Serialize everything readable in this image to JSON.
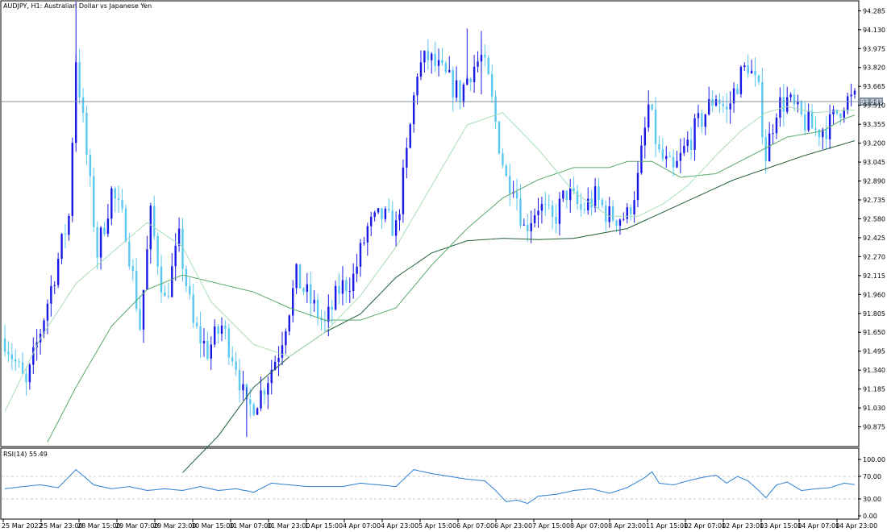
{
  "header": {
    "title": "AUDJPY, H1:  Australian Dollar vs Japanese Yen",
    "current_price": "93.541",
    "current_price_value": 93.541
  },
  "colors": {
    "bull": "#1a1ae6",
    "bear": "#5ac8f0",
    "ma_fast": "#a8ddb5",
    "ma_mid": "#5aa86a",
    "ma_slow": "#1f5e32",
    "rsi_line": "#2a7fd4",
    "grid": "#cccccc",
    "price_line": "#8090a0"
  },
  "chart_data": [
    {
      "type": "candlestick",
      "title": "AUDJPY, H1:  Australian Dollar vs Japanese Yen",
      "timeframe": "H1",
      "ylim": [
        90.72,
        94.36
      ],
      "y_ticks": [
        "94.285",
        "94.130",
        "93.975",
        "93.820",
        "93.665",
        "93.510",
        "93.355",
        "93.200",
        "93.045",
        "92.890",
        "92.735",
        "92.580",
        "92.425",
        "92.270",
        "92.115",
        "91.960",
        "91.805",
        "91.650",
        "91.495",
        "91.340",
        "91.185",
        "91.030",
        "90.875"
      ],
      "x_ticks": [
        "25 Mar 2022",
        "25 Mar 23:00",
        "28 Mar 15:00",
        "29 Mar 07:00",
        "29 Mar 23:00",
        "30 Mar 15:00",
        "31 Mar 07:00",
        "31 Mar 23:00",
        "1 Apr 15:00",
        "4 Apr 07:00",
        "4 Apr 23:00",
        "5 Apr 15:00",
        "6 Apr 07:00",
        "6 Apr 23:00",
        "7 Apr 15:00",
        "8 Apr 07:00",
        "8 Apr 23:00",
        "11 Apr 15:00",
        "12 Apr 07:00",
        "12 Apr 23:00",
        "13 Apr 15:00",
        "14 Apr 07:00",
        "14 Apr 23:00"
      ],
      "close_path": [
        [
          0,
          91.6
        ],
        [
          6,
          91.2
        ],
        [
          12,
          91.9
        ],
        [
          18,
          92.6
        ],
        [
          20,
          93.9
        ],
        [
          23,
          93.1
        ],
        [
          26,
          92.3
        ],
        [
          30,
          92.8
        ],
        [
          34,
          92.5
        ],
        [
          38,
          91.7
        ],
        [
          41,
          92.6
        ],
        [
          45,
          91.9
        ],
        [
          49,
          92.4
        ],
        [
          53,
          91.7
        ],
        [
          57,
          91.5
        ],
        [
          61,
          91.7
        ],
        [
          65,
          91.4
        ],
        [
          68,
          91.0
        ],
        [
          72,
          91.15
        ],
        [
          77,
          91.5
        ],
        [
          82,
          92.1
        ],
        [
          86,
          91.9
        ],
        [
          90,
          91.7
        ],
        [
          94,
          92.0
        ],
        [
          98,
          92.1
        ],
        [
          102,
          92.5
        ],
        [
          106,
          92.6
        ],
        [
          110,
          92.5
        ],
        [
          113,
          93.1
        ],
        [
          116,
          93.8
        ],
        [
          119,
          93.9
        ],
        [
          122,
          93.8
        ],
        [
          125,
          93.7
        ],
        [
          128,
          93.6
        ],
        [
          131,
          93.8
        ],
        [
          134,
          93.9
        ],
        [
          136,
          93.7
        ],
        [
          139,
          93.2
        ],
        [
          141,
          92.9
        ],
        [
          143,
          92.9
        ],
        [
          146,
          92.5
        ],
        [
          150,
          92.7
        ],
        [
          154,
          92.55
        ],
        [
          158,
          92.8
        ],
        [
          162,
          92.65
        ],
        [
          166,
          92.75
        ],
        [
          170,
          92.6
        ],
        [
          175,
          92.6
        ],
        [
          178,
          92.9
        ],
        [
          181,
          93.5
        ],
        [
          184,
          93.1
        ],
        [
          188,
          92.95
        ],
        [
          192,
          93.2
        ],
        [
          196,
          93.4
        ],
        [
          200,
          93.6
        ],
        [
          203,
          93.45
        ],
        [
          206,
          93.7
        ],
        [
          209,
          93.85
        ],
        [
          212,
          93.6
        ],
        [
          214,
          93.1
        ],
        [
          217,
          93.5
        ],
        [
          220,
          93.55
        ],
        [
          224,
          93.4
        ],
        [
          228,
          93.3
        ],
        [
          232,
          93.35
        ],
        [
          236,
          93.55
        ],
        [
          239,
          93.55
        ]
      ],
      "ma_fast": [
        [
          0,
          91.0
        ],
        [
          10,
          91.6
        ],
        [
          20,
          92.05
        ],
        [
          30,
          92.3
        ],
        [
          40,
          92.55
        ],
        [
          50,
          92.35
        ],
        [
          58,
          91.9
        ],
        [
          70,
          91.55
        ],
        [
          80,
          91.45
        ],
        [
          90,
          91.65
        ],
        [
          100,
          91.95
        ],
        [
          110,
          92.35
        ],
        [
          120,
          92.85
        ],
        [
          130,
          93.35
        ],
        [
          140,
          93.45
        ],
        [
          150,
          93.15
        ],
        [
          160,
          92.8
        ],
        [
          170,
          92.6
        ],
        [
          178,
          92.6
        ],
        [
          185,
          92.7
        ],
        [
          192,
          92.85
        ],
        [
          200,
          93.1
        ],
        [
          207,
          93.3
        ],
        [
          214,
          93.45
        ],
        [
          220,
          93.5
        ],
        [
          228,
          93.45
        ],
        [
          236,
          93.47
        ],
        [
          239,
          93.47
        ]
      ],
      "ma_mid": [
        [
          12,
          90.75
        ],
        [
          20,
          91.2
        ],
        [
          30,
          91.7
        ],
        [
          40,
          92.0
        ],
        [
          50,
          92.12
        ],
        [
          60,
          92.05
        ],
        [
          70,
          91.98
        ],
        [
          80,
          91.85
        ],
        [
          90,
          91.75
        ],
        [
          100,
          91.75
        ],
        [
          110,
          91.85
        ],
        [
          120,
          92.2
        ],
        [
          130,
          92.5
        ],
        [
          140,
          92.75
        ],
        [
          150,
          92.9
        ],
        [
          160,
          93.0
        ],
        [
          170,
          93.0
        ],
        [
          175,
          93.05
        ],
        [
          182,
          93.05
        ],
        [
          190,
          92.92
        ],
        [
          200,
          92.95
        ],
        [
          210,
          93.1
        ],
        [
          220,
          93.25
        ],
        [
          230,
          93.3
        ],
        [
          236,
          93.4
        ],
        [
          239,
          93.43
        ]
      ],
      "ma_slow": [
        [
          50,
          90.5
        ],
        [
          60,
          90.8
        ],
        [
          70,
          91.2
        ],
        [
          80,
          91.45
        ],
        [
          90,
          91.65
        ],
        [
          100,
          91.8
        ],
        [
          110,
          92.1
        ],
        [
          120,
          92.3
        ],
        [
          130,
          92.4
        ],
        [
          140,
          92.42
        ],
        [
          150,
          92.41
        ],
        [
          160,
          92.42
        ],
        [
          175,
          92.5
        ],
        [
          190,
          92.7
        ],
        [
          205,
          92.9
        ],
        [
          215,
          93.0
        ],
        [
          225,
          93.1
        ],
        [
          239,
          93.22
        ]
      ]
    },
    {
      "type": "line",
      "title": "RSI(14) 55.49",
      "indicator": "RSI",
      "period": 14,
      "last_value": 55.49,
      "ylim": [
        0,
        100
      ],
      "levels": [
        30,
        70
      ],
      "y_ticks": [
        "100.00",
        "70.00",
        "30.00",
        "0.00"
      ],
      "values": [
        [
          0,
          48
        ],
        [
          5,
          52
        ],
        [
          10,
          55
        ],
        [
          15,
          50
        ],
        [
          20,
          82
        ],
        [
          25,
          55
        ],
        [
          30,
          48
        ],
        [
          35,
          52
        ],
        [
          40,
          45
        ],
        [
          45,
          48
        ],
        [
          50,
          45
        ],
        [
          55,
          52
        ],
        [
          60,
          45
        ],
        [
          65,
          48
        ],
        [
          70,
          42
        ],
        [
          75,
          58
        ],
        [
          80,
          55
        ],
        [
          85,
          52
        ],
        [
          90,
          52
        ],
        [
          95,
          52
        ],
        [
          100,
          58
        ],
        [
          105,
          55
        ],
        [
          110,
          52
        ],
        [
          115,
          82
        ],
        [
          120,
          75
        ],
        [
          125,
          70
        ],
        [
          130,
          65
        ],
        [
          135,
          62
        ],
        [
          138,
          45
        ],
        [
          141,
          25
        ],
        [
          144,
          28
        ],
        [
          147,
          22
        ],
        [
          150,
          35
        ],
        [
          155,
          38
        ],
        [
          160,
          45
        ],
        [
          165,
          48
        ],
        [
          170,
          40
        ],
        [
          175,
          50
        ],
        [
          180,
          68
        ],
        [
          182,
          78
        ],
        [
          184,
          58
        ],
        [
          188,
          55
        ],
        [
          192,
          62
        ],
        [
          196,
          68
        ],
        [
          200,
          72
        ],
        [
          203,
          58
        ],
        [
          206,
          70
        ],
        [
          209,
          62
        ],
        [
          212,
          45
        ],
        [
          214,
          32
        ],
        [
          217,
          55
        ],
        [
          220,
          60
        ],
        [
          224,
          45
        ],
        [
          228,
          48
        ],
        [
          232,
          50
        ],
        [
          236,
          58
        ],
        [
          239,
          55.49
        ]
      ]
    }
  ]
}
